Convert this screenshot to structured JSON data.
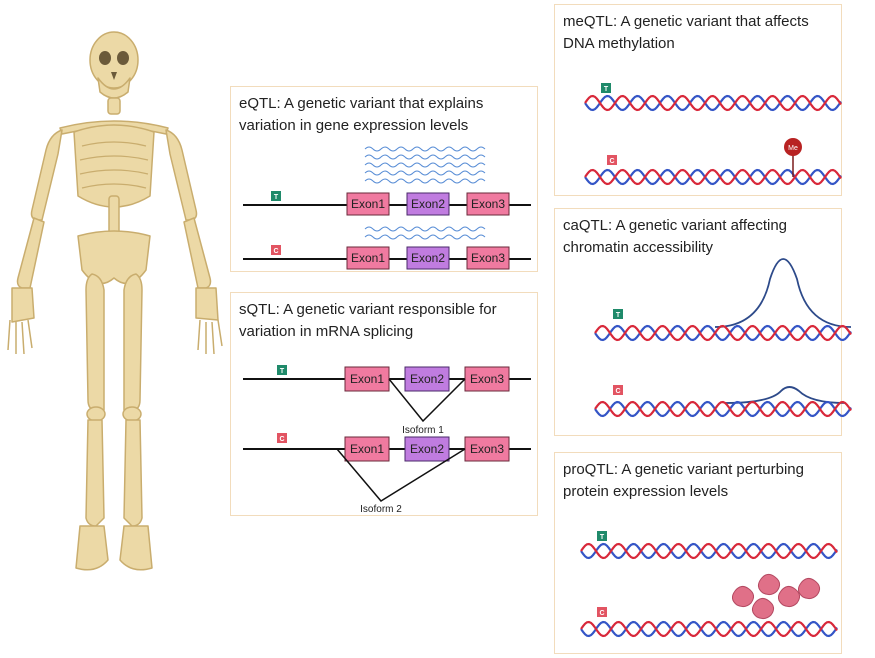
{
  "colors": {
    "bone": "#ecd9a6",
    "bone_outline": "#c9ad6e",
    "exon_pink": "#f07aa0",
    "exon_purple": "#c07ce0",
    "dna_red": "#d8283a",
    "dna_blue": "#3455c6",
    "allele_t": "#1f8a6a",
    "allele_c": "#e25462",
    "wave": "#5b8fd6",
    "peak": "#2d4a8a",
    "panel_border": "#f2dcbc",
    "protein": "#e07088"
  },
  "illustration": {
    "icon": "human-skeleton-icon"
  },
  "eqtl": {
    "title": "eQTL: A genetic variant that explains variation in gene expression levels",
    "allele_top": "T",
    "allele_bottom": "C",
    "exons": [
      "Exon1",
      "Exon2",
      "Exon3"
    ]
  },
  "sqtl": {
    "title": "sQTL: A genetic variant responsible for variation in mRNA splicing",
    "allele_top": "T",
    "allele_bottom": "C",
    "exons": [
      "Exon1",
      "Exon2",
      "Exon3"
    ],
    "isoform1": "Isoform 1",
    "isoform2": "Isoform 2"
  },
  "meqtl": {
    "title": "meQTL: A genetic variant that affects DNA methylation",
    "allele_top": "T",
    "allele_bottom": "C",
    "methyl_label": "Me"
  },
  "caqtl": {
    "title": "caQTL: A genetic variant affecting chromatin accessibility",
    "allele_top": "T",
    "allele_bottom": "C"
  },
  "proqtl": {
    "title": "proQTL: A genetic variant perturbing protein expression levels",
    "allele_top": "T",
    "allele_bottom": "C"
  }
}
